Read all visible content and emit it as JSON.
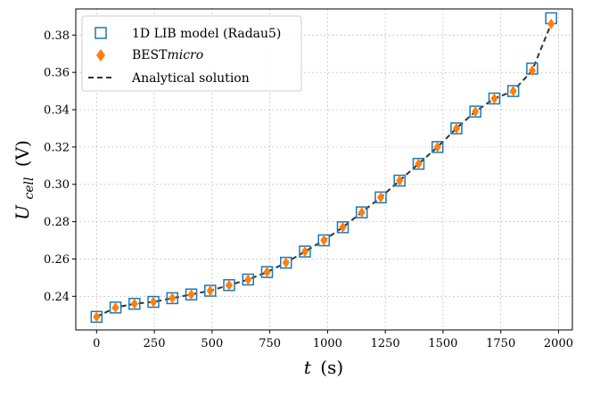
{
  "chart_data": {
    "type": "scatter",
    "xlabel_symbol": "t",
    "xlabel_unit": "(s)",
    "ylabel_symbol": "U",
    "ylabel_subscript": "cell",
    "ylabel_unit": "(V)",
    "xlim": [
      -90,
      2060
    ],
    "ylim": [
      0.222,
      0.394
    ],
    "xticks": [
      0,
      250,
      500,
      750,
      1000,
      1250,
      1500,
      1750,
      2000
    ],
    "yticks": [
      0.24,
      0.26,
      0.28,
      0.3,
      0.32,
      0.34,
      0.36,
      0.38
    ],
    "grid": true,
    "legend_position": "top-left",
    "series": [
      {
        "name": "1D LIB model (Radau5)",
        "marker": "square-open",
        "color": "#1f77b4",
        "x": [
          0,
          82,
          164,
          246,
          328,
          410,
          492,
          574,
          656,
          738,
          820,
          902,
          984,
          1066,
          1148,
          1230,
          1312,
          1394,
          1476,
          1558,
          1640,
          1722,
          1804,
          1886,
          1968
        ],
        "y": [
          0.229,
          0.234,
          0.236,
          0.237,
          0.239,
          0.241,
          0.243,
          0.246,
          0.249,
          0.253,
          0.258,
          0.264,
          0.27,
          0.277,
          0.285,
          0.293,
          0.302,
          0.311,
          0.32,
          0.33,
          0.339,
          0.346,
          0.35,
          0.362,
          0.389
        ]
      },
      {
        "name_main": "BEST",
        "name_italic": "micro",
        "marker": "diamond",
        "color": "#ff7f0e",
        "x": [
          0,
          82,
          164,
          246,
          328,
          410,
          492,
          574,
          656,
          738,
          820,
          902,
          984,
          1066,
          1148,
          1230,
          1312,
          1394,
          1476,
          1558,
          1640,
          1722,
          1804,
          1886,
          1968
        ],
        "y": [
          0.229,
          0.234,
          0.236,
          0.237,
          0.239,
          0.241,
          0.243,
          0.246,
          0.249,
          0.253,
          0.258,
          0.264,
          0.27,
          0.277,
          0.285,
          0.293,
          0.302,
          0.311,
          0.32,
          0.33,
          0.339,
          0.346,
          0.35,
          0.361,
          0.386
        ]
      },
      {
        "name": "Analytical solution",
        "marker": "dashed-line",
        "color": "#333333",
        "x": [
          0,
          82,
          164,
          246,
          328,
          410,
          492,
          574,
          656,
          738,
          820,
          902,
          984,
          1066,
          1148,
          1230,
          1312,
          1394,
          1476,
          1558,
          1640,
          1722,
          1804,
          1886,
          1968
        ],
        "y": [
          0.229,
          0.234,
          0.236,
          0.237,
          0.239,
          0.241,
          0.243,
          0.246,
          0.249,
          0.253,
          0.258,
          0.264,
          0.27,
          0.277,
          0.285,
          0.293,
          0.302,
          0.311,
          0.32,
          0.33,
          0.339,
          0.346,
          0.35,
          0.361,
          0.386
        ]
      }
    ]
  }
}
